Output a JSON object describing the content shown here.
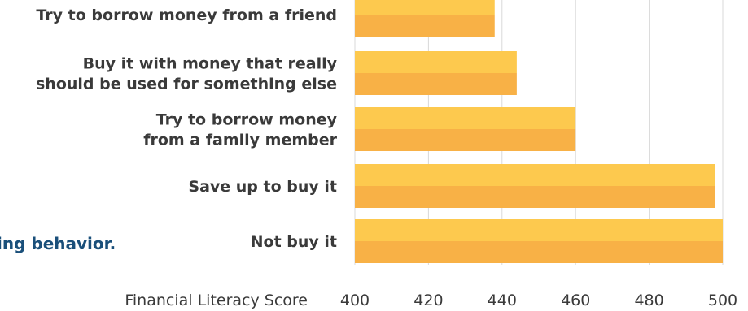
{
  "background_text": "ing behavior.",
  "colors": {
    "bar_top": "#FDC94E",
    "bar_bottom": "#F8B146",
    "grid": "#d9d9d9",
    "text": "#3a3a3a",
    "background_text": "#1a4f7a"
  },
  "chart_data": {
    "type": "bar",
    "orientation": "horizontal",
    "title": "",
    "xlabel": "Financial Literacy Score",
    "ylabel": "",
    "categories": [
      [
        "Try to borrow money from a friend"
      ],
      [
        "Buy it with money that really",
        "should be used for something else"
      ],
      [
        "Try to borrow money",
        "from a family member"
      ],
      [
        "Save up to buy it"
      ],
      [
        "Not buy it"
      ]
    ],
    "values": [
      438,
      444,
      460,
      498,
      500
    ],
    "xlim": [
      400,
      500
    ],
    "xticks": [
      "400",
      "420",
      "440",
      "460",
      "480",
      "500"
    ],
    "grid": true
  }
}
